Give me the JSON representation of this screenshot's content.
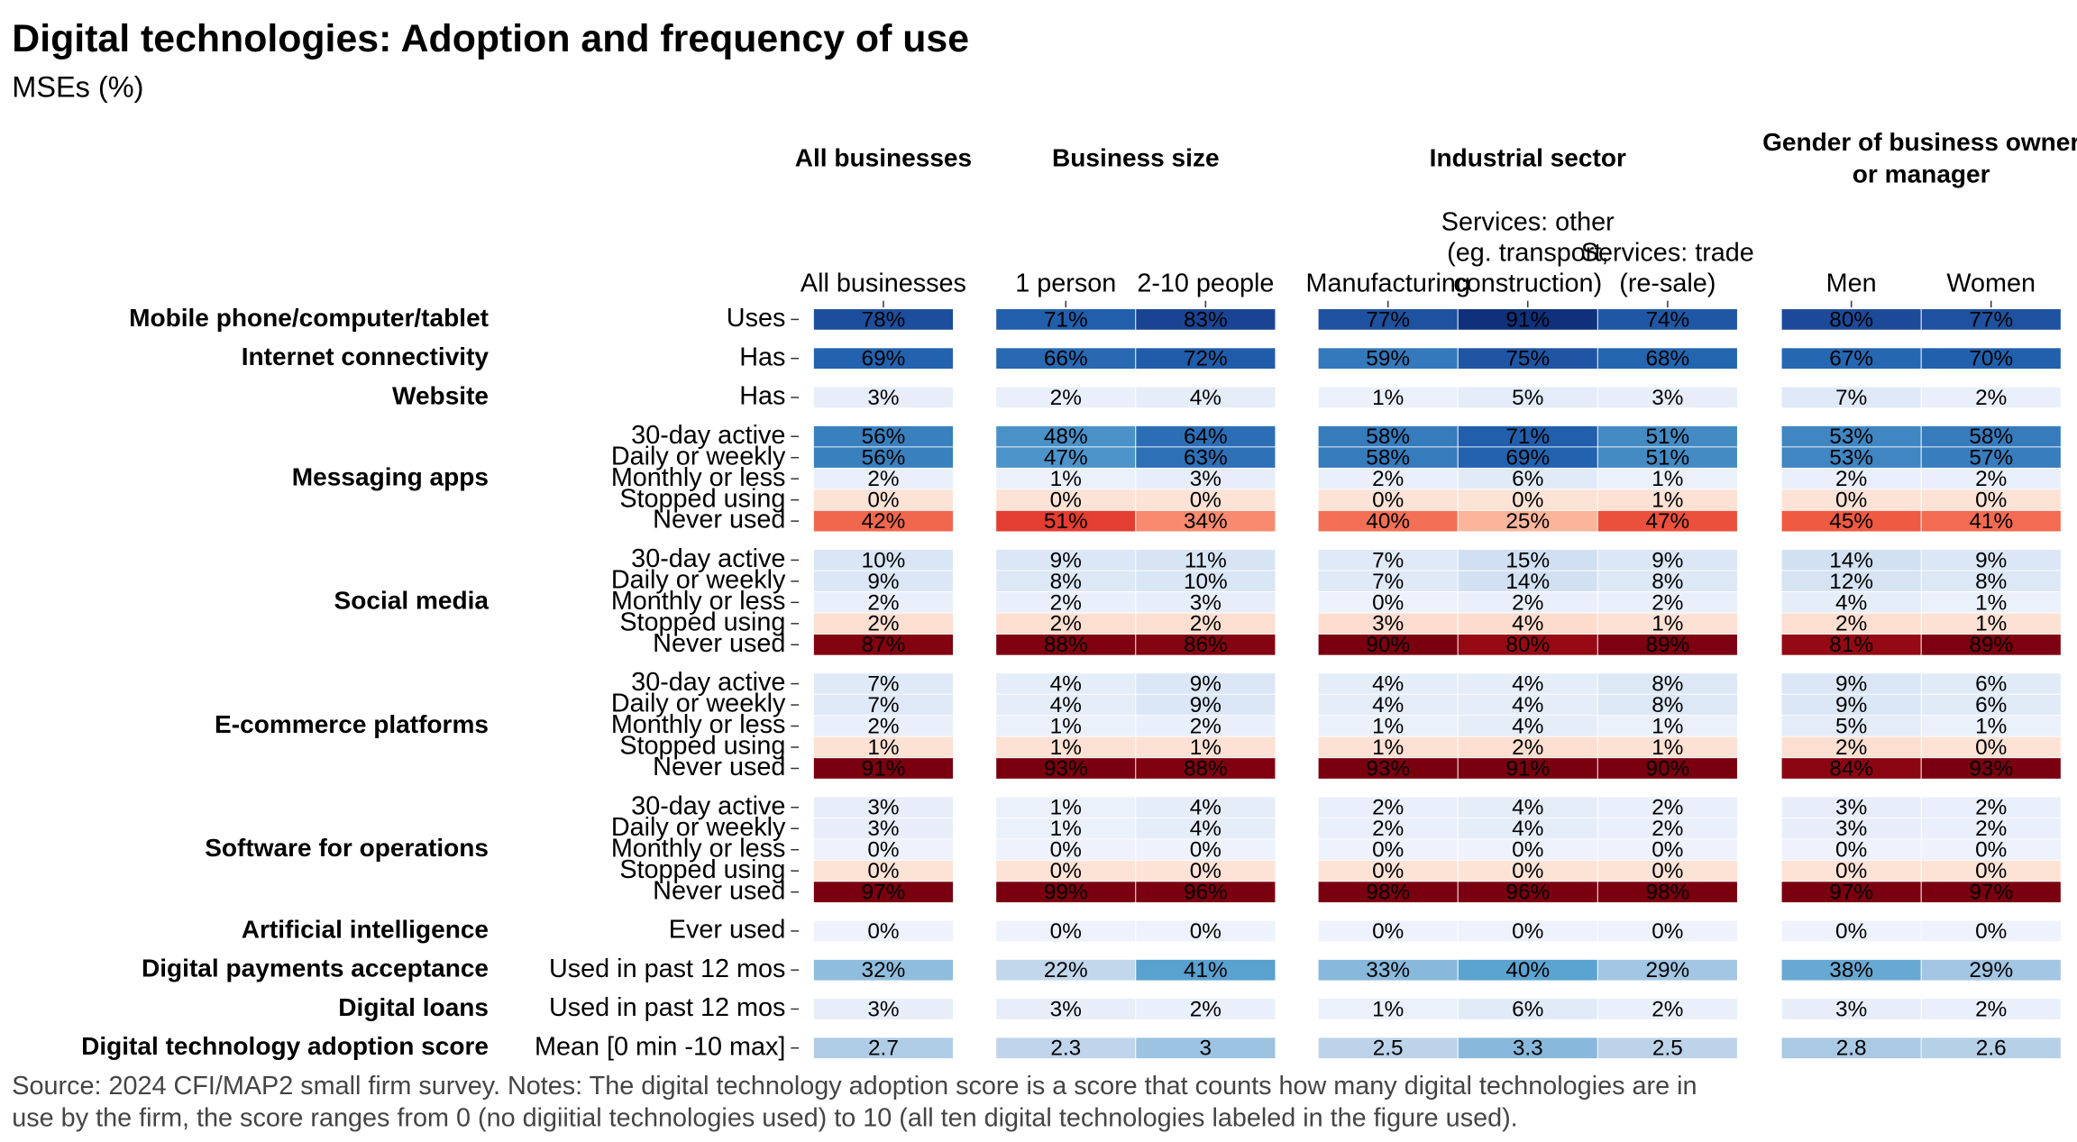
{
  "chart_data": {
    "type": "heatmap",
    "title": "Digital technologies: Adoption and frequency of use",
    "subtitle": "MSEs (%)",
    "note": [
      "Source: 2024 CFI/MAP2 small firm survey. Notes: The digital technology adoption score is a score that counts how many digital technologies are in",
      "use by the firm, the score ranges from 0 (no digiitial technologies used) to 10 (all ten digital technologies labeled in the figure used)."
    ],
    "clim": [
      0,
      100
    ],
    "color_scales": {
      "blues": [
        [
          0,
          "#edf2fc"
        ],
        [
          25,
          "#bcd3ea"
        ],
        [
          40,
          "#5ba3d0"
        ],
        [
          55,
          "#3b82c0"
        ],
        [
          70,
          "#2160ad"
        ],
        [
          85,
          "#1a3f8f"
        ],
        [
          95,
          "#08266e"
        ]
      ],
      "reds": [
        [
          0,
          "#fde3d6"
        ],
        [
          25,
          "#fbb59b"
        ],
        [
          35,
          "#f6856a"
        ],
        [
          45,
          "#ef5a42"
        ],
        [
          55,
          "#dd2a25"
        ],
        [
          75,
          "#a50f15"
        ],
        [
          90,
          "#7a0010"
        ]
      ]
    },
    "column_groups": [
      {
        "label": [
          "All businesses"
        ],
        "columns": [
          [
            "All businesses"
          ]
        ]
      },
      {
        "label": [
          "Business size"
        ],
        "columns": [
          [
            "1 person"
          ],
          [
            "2-10 people"
          ]
        ]
      },
      {
        "label": [
          "Industrial sector"
        ],
        "columns": [
          [
            "Manufacturing"
          ],
          [
            "Services: other",
            "(eg. transport,",
            "construction)"
          ],
          [
            "Services: trade",
            "(re-sale)"
          ]
        ]
      },
      {
        "label": [
          "Gender of business owner",
          "or manager"
        ],
        "columns": [
          [
            "Men"
          ],
          [
            "Women"
          ]
        ]
      }
    ],
    "row_groups": [
      {
        "label": "Mobile phone/computer/tablet",
        "rows": [
          {
            "label": "Uses",
            "scale": "blues",
            "values": [
              78,
              71,
              83,
              77,
              91,
              74,
              80,
              77
            ],
            "value_labels": [
              "78%",
              "71%",
              "83%",
              "77%",
              "91%",
              "74%",
              "80%",
              "77%"
            ]
          }
        ]
      },
      {
        "label": "Internet connectivity",
        "rows": [
          {
            "label": "Has",
            "scale": "blues",
            "values": [
              69,
              66,
              72,
              59,
              75,
              68,
              67,
              70
            ],
            "value_labels": [
              "69%",
              "66%",
              "72%",
              "59%",
              "75%",
              "68%",
              "67%",
              "70%"
            ]
          }
        ]
      },
      {
        "label": "Website",
        "rows": [
          {
            "label": "Has",
            "scale": "blues",
            "values": [
              3,
              2,
              4,
              1,
              5,
              3,
              7,
              2
            ],
            "value_labels": [
              "3%",
              "2%",
              "4%",
              "1%",
              "5%",
              "3%",
              "7%",
              "2%"
            ]
          }
        ]
      },
      {
        "label": "Messaging apps",
        "rows": [
          {
            "label": "30-day active",
            "scale": "blues",
            "values": [
              56,
              48,
              64,
              58,
              71,
              51,
              53,
              58
            ],
            "value_labels": [
              "56%",
              "48%",
              "64%",
              "58%",
              "71%",
              "51%",
              "53%",
              "58%"
            ]
          },
          {
            "label": "Daily or weekly",
            "scale": "blues",
            "values": [
              56,
              47,
              63,
              58,
              69,
              51,
              53,
              57
            ],
            "value_labels": [
              "56%",
              "47%",
              "63%",
              "58%",
              "69%",
              "51%",
              "53%",
              "57%"
            ]
          },
          {
            "label": "Monthly or less",
            "scale": "blues",
            "values": [
              2,
              1,
              3,
              2,
              6,
              1,
              2,
              2
            ],
            "value_labels": [
              "2%",
              "1%",
              "3%",
              "2%",
              "6%",
              "1%",
              "2%",
              "2%"
            ]
          },
          {
            "label": "Stopped using",
            "scale": "reds",
            "values": [
              0,
              0,
              0,
              0,
              0,
              1,
              0,
              0
            ],
            "value_labels": [
              "0%",
              "0%",
              "0%",
              "0%",
              "0%",
              "1%",
              "0%",
              "0%"
            ]
          },
          {
            "label": "Never used",
            "scale": "reds",
            "values": [
              42,
              51,
              34,
              40,
              25,
              47,
              45,
              41
            ],
            "value_labels": [
              "42%",
              "51%",
              "34%",
              "40%",
              "25%",
              "47%",
              "45%",
              "41%"
            ]
          }
        ]
      },
      {
        "label": "Social media",
        "rows": [
          {
            "label": "30-day active",
            "scale": "blues",
            "values": [
              10,
              9,
              11,
              7,
              15,
              9,
              14,
              9
            ],
            "value_labels": [
              "10%",
              "9%",
              "11%",
              "7%",
              "15%",
              "9%",
              "14%",
              "9%"
            ]
          },
          {
            "label": "Daily or weekly",
            "scale": "blues",
            "values": [
              9,
              8,
              10,
              7,
              14,
              8,
              12,
              8
            ],
            "value_labels": [
              "9%",
              "8%",
              "10%",
              "7%",
              "14%",
              "8%",
              "12%",
              "8%"
            ]
          },
          {
            "label": "Monthly or less",
            "scale": "blues",
            "values": [
              2,
              2,
              3,
              0,
              2,
              2,
              4,
              1
            ],
            "value_labels": [
              "2%",
              "2%",
              "3%",
              "0%",
              "2%",
              "2%",
              "4%",
              "1%"
            ]
          },
          {
            "label": "Stopped using",
            "scale": "reds",
            "values": [
              2,
              2,
              2,
              3,
              4,
              1,
              2,
              1
            ],
            "value_labels": [
              "2%",
              "2%",
              "2%",
              "3%",
              "4%",
              "1%",
              "2%",
              "1%"
            ]
          },
          {
            "label": "Never used",
            "scale": "reds",
            "values": [
              87,
              88,
              86,
              90,
              80,
              89,
              81,
              89
            ],
            "value_labels": [
              "87%",
              "88%",
              "86%",
              "90%",
              "80%",
              "89%",
              "81%",
              "89%"
            ]
          }
        ]
      },
      {
        "label": "E-commerce platforms",
        "rows": [
          {
            "label": "30-day active",
            "scale": "blues",
            "values": [
              7,
              4,
              9,
              4,
              4,
              8,
              9,
              6
            ],
            "value_labels": [
              "7%",
              "4%",
              "9%",
              "4%",
              "4%",
              "8%",
              "9%",
              "6%"
            ]
          },
          {
            "label": "Daily or weekly",
            "scale": "blues",
            "values": [
              7,
              4,
              9,
              4,
              4,
              8,
              9,
              6
            ],
            "value_labels": [
              "7%",
              "4%",
              "9%",
              "4%",
              "4%",
              "8%",
              "9%",
              "6%"
            ]
          },
          {
            "label": "Monthly or less",
            "scale": "blues",
            "values": [
              2,
              1,
              2,
              1,
              4,
              1,
              5,
              1
            ],
            "value_labels": [
              "2%",
              "1%",
              "2%",
              "1%",
              "4%",
              "1%",
              "5%",
              "1%"
            ]
          },
          {
            "label": "Stopped using",
            "scale": "reds",
            "values": [
              1,
              1,
              1,
              1,
              2,
              1,
              2,
              0
            ],
            "value_labels": [
              "1%",
              "1%",
              "1%",
              "1%",
              "2%",
              "1%",
              "2%",
              "0%"
            ]
          },
          {
            "label": "Never used",
            "scale": "reds",
            "values": [
              91,
              93,
              88,
              93,
              91,
              90,
              84,
              93
            ],
            "value_labels": [
              "91%",
              "93%",
              "88%",
              "93%",
              "91%",
              "90%",
              "84%",
              "93%"
            ]
          }
        ]
      },
      {
        "label": "Software for operations",
        "rows": [
          {
            "label": "30-day active",
            "scale": "blues",
            "values": [
              3,
              1,
              4,
              2,
              4,
              2,
              3,
              2
            ],
            "value_labels": [
              "3%",
              "1%",
              "4%",
              "2%",
              "4%",
              "2%",
              "3%",
              "2%"
            ]
          },
          {
            "label": "Daily or weekly",
            "scale": "blues",
            "values": [
              3,
              1,
              4,
              2,
              4,
              2,
              3,
              2
            ],
            "value_labels": [
              "3%",
              "1%",
              "4%",
              "2%",
              "4%",
              "2%",
              "3%",
              "2%"
            ]
          },
          {
            "label": "Monthly or less",
            "scale": "blues",
            "values": [
              0,
              0,
              0,
              0,
              0,
              0,
              0,
              0
            ],
            "value_labels": [
              "0%",
              "0%",
              "0%",
              "0%",
              "0%",
              "0%",
              "0%",
              "0%"
            ]
          },
          {
            "label": "Stopped using",
            "scale": "reds",
            "values": [
              0,
              0,
              0,
              0,
              0,
              0,
              0,
              0
            ],
            "value_labels": [
              "0%",
              "0%",
              "0%",
              "0%",
              "0%",
              "0%",
              "0%",
              "0%"
            ]
          },
          {
            "label": "Never used",
            "scale": "reds",
            "values": [
              97,
              99,
              96,
              98,
              96,
              98,
              97,
              97
            ],
            "value_labels": [
              "97%",
              "99%",
              "96%",
              "98%",
              "96%",
              "98%",
              "97%",
              "97%"
            ]
          }
        ]
      },
      {
        "label": "Artificial intelligence",
        "rows": [
          {
            "label": "Ever used",
            "scale": "blues",
            "values": [
              0,
              0,
              0,
              0,
              0,
              0,
              0,
              0
            ],
            "value_labels": [
              "0%",
              "0%",
              "0%",
              "0%",
              "0%",
              "0%",
              "0%",
              "0%"
            ]
          }
        ]
      },
      {
        "label": "Digital payments acceptance",
        "rows": [
          {
            "label": "Used in past 12 mos",
            "scale": "blues",
            "values": [
              32,
              22,
              41,
              33,
              40,
              29,
              38,
              29
            ],
            "value_labels": [
              "32%",
              "22%",
              "41%",
              "33%",
              "40%",
              "29%",
              "38%",
              "29%"
            ]
          }
        ]
      },
      {
        "label": "Digital loans",
        "rows": [
          {
            "label": "Used in past 12 mos",
            "scale": "blues",
            "values": [
              3,
              3,
              2,
              1,
              6,
              2,
              3,
              2
            ],
            "value_labels": [
              "3%",
              "3%",
              "2%",
              "1%",
              "6%",
              "2%",
              "3%",
              "2%"
            ]
          }
        ]
      },
      {
        "label": "Digital technology adoption score",
        "rows": [
          {
            "label": "Mean [0 min -10 max]",
            "scale": "blues",
            "clim": [
              0,
              10
            ],
            "values": [
              2.7,
              2.3,
              3,
              2.5,
              3.3,
              2.5,
              2.8,
              2.6
            ]
          }
        ]
      }
    ]
  }
}
